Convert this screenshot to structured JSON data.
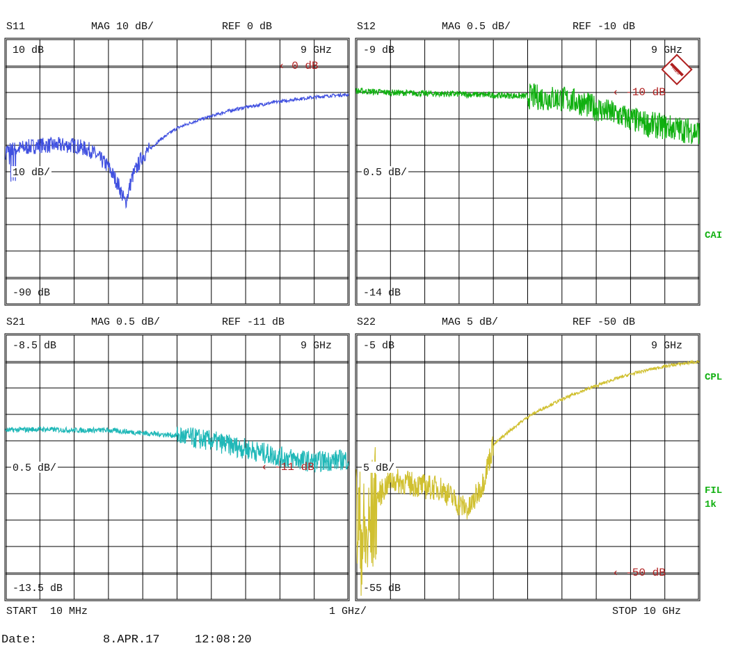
{
  "chart_data": [
    {
      "type": "line",
      "param": "S11",
      "scale_label": "MAG 10 dB/",
      "ref_label": "REF 0 dB",
      "top_label": "10 dB",
      "bottom_label": "-90 dB",
      "div_label": "10 dB/",
      "marker_label": "9 GHz",
      "ref_marker": "0 dB",
      "ylim": [
        -90,
        10
      ],
      "ref": 0,
      "xlim": [
        0.01,
        10
      ],
      "color": "#4050e0",
      "noise": "high-low",
      "x": [
        0.01,
        0.5,
        1,
        1.5,
        2,
        2.5,
        3,
        3.3,
        3.5,
        3.7,
        4,
        4.5,
        5,
        5.5,
        6,
        6.5,
        7,
        7.5,
        8,
        8.5,
        9,
        9.5,
        10
      ],
      "y": [
        -32,
        -31,
        -30,
        -30,
        -30,
        -32,
        -38,
        -45,
        -52,
        -42,
        -34,
        -28,
        -23.5,
        -21,
        -19,
        -17,
        -15.6,
        -14.5,
        -13.4,
        -12.5,
        -11.8,
        -11.2,
        -10.8
      ]
    },
    {
      "type": "line",
      "param": "S12",
      "scale_label": "MAG 0.5 dB/",
      "ref_label": "REF -10 dB",
      "top_label": "-9 dB",
      "bottom_label": "-14 dB",
      "div_label": "0.5 dB/",
      "marker_label": "9 GHz",
      "ref_marker": "-10 dB",
      "ylim": [
        -14,
        -9
      ],
      "ref": -10,
      "xlim": [
        0.01,
        10
      ],
      "color": "#10b010",
      "x": [
        0.01,
        1,
        2,
        3,
        4,
        5,
        5.5,
        6,
        6.5,
        7,
        7.5,
        8,
        8.5,
        9,
        9.5,
        10
      ],
      "y": [
        -9.97,
        -10,
        -10.02,
        -10.03,
        -10.05,
        -10.07,
        -10.1,
        -10.12,
        -10.18,
        -10.3,
        -10.4,
        -10.5,
        -10.6,
        -10.65,
        -10.7,
        -10.75
      ]
    },
    {
      "type": "line",
      "param": "S21",
      "scale_label": "MAG 0.5 dB/",
      "ref_label": "REF -11 dB",
      "top_label": "-8.5 dB",
      "bottom_label": "-13.5 dB",
      "div_label": "0.5 dB/",
      "marker_label": "9 GHz",
      "ref_marker": "-11 dB",
      "ylim": [
        -13.5,
        -8.5
      ],
      "ref": -11,
      "xlim": [
        0.01,
        10
      ],
      "color": "#20b8b8",
      "x": [
        0.01,
        1,
        2,
        3,
        4,
        5,
        6,
        7,
        8,
        9,
        10
      ],
      "y": [
        -10.3,
        -10.28,
        -10.3,
        -10.3,
        -10.35,
        -10.4,
        -10.5,
        -10.65,
        -10.8,
        -10.9,
        -10.85
      ]
    },
    {
      "type": "line",
      "param": "S22",
      "scale_label": "MAG 5 dB/",
      "ref_label": "REF -50 dB",
      "top_label": "-5 dB",
      "bottom_label": "-55 dB",
      "div_label": "5 dB/",
      "marker_label": "9 GHz",
      "ref_marker": "-50 dB",
      "ylim": [
        -55,
        -5
      ],
      "ref": -50,
      "xlim": [
        0.01,
        10
      ],
      "color": "#d0c030",
      "x": [
        0.01,
        0.3,
        0.6,
        1,
        1.5,
        2,
        2.5,
        3,
        3.3,
        3.7,
        4,
        4.5,
        5,
        5.5,
        6,
        6.5,
        7,
        7.5,
        8,
        8.5,
        9,
        9.5,
        10
      ],
      "y": [
        -40,
        -45,
        -36,
        -32.4,
        -33,
        -33.7,
        -34,
        -37,
        -38,
        -33,
        -25.8,
        -23,
        -20.5,
        -18.7,
        -17.2,
        -15.8,
        -14.6,
        -13.4,
        -12.4,
        -11.6,
        -10.9,
        -10.4,
        -10
      ]
    }
  ],
  "side_labels": {
    "cai": "CAI",
    "cpl": "CPL",
    "fil": "FIL",
    "fil_bw": "1k"
  },
  "footer": {
    "start": "START  10 MHz",
    "span": "1 GHz/",
    "stop": "STOP 10 GHz",
    "date_label": "Date:",
    "date": "8.APR.17",
    "time": "12:08:20"
  },
  "colors": {
    "ref_marker": "#b02020",
    "grid": "#000000"
  },
  "logo": "R&S"
}
